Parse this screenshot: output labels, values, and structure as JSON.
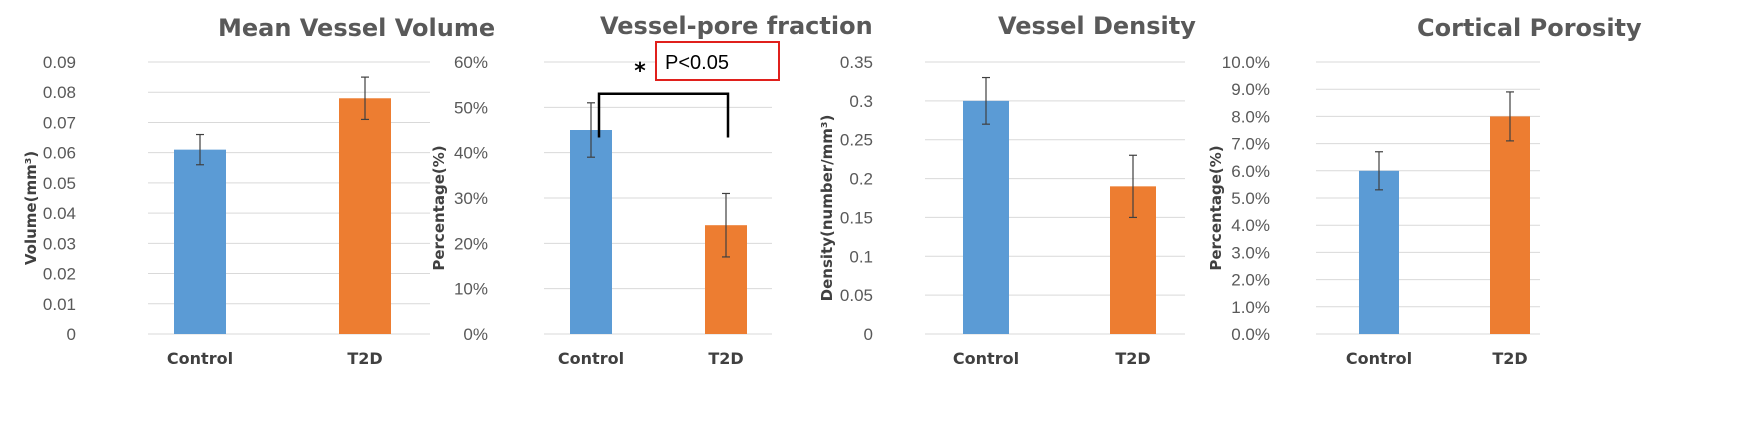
{
  "colors": {
    "control": "#5b9bd5",
    "t2d": "#ed7d31",
    "grid": "#d9d9d9",
    "text": "#595959",
    "annotation_box": "#e0201c"
  },
  "chart_data": [
    {
      "type": "bar",
      "title": "Mean Vessel Volume",
      "ylabel": "Volume(mm³)",
      "xlabel": "",
      "categories": [
        "Control",
        "T2D"
      ],
      "values": [
        0.061,
        0.078
      ],
      "errors": [
        0.005,
        0.007
      ],
      "ylim": [
        0,
        0.09
      ],
      "ytick_values": [
        0,
        0.01,
        0.02,
        0.03,
        0.04,
        0.05,
        0.06,
        0.07,
        0.08,
        0.09
      ],
      "ytick_labels": [
        "0",
        "0.01",
        "0.02",
        "0.03",
        "0.04",
        "0.05",
        "0.06",
        "0.07",
        "0.08",
        "0.09"
      ],
      "grid": true
    },
    {
      "type": "bar",
      "title": "Vessel-pore fraction",
      "ylabel": "Percentage(%)",
      "xlabel": "",
      "categories": [
        "Control",
        "T2D"
      ],
      "values": [
        0.45,
        0.24
      ],
      "errors": [
        0.06,
        0.07
      ],
      "ylim": [
        0,
        0.6
      ],
      "ytick_values": [
        0,
        0.1,
        0.2,
        0.3,
        0.4,
        0.5,
        0.6
      ],
      "ytick_labels": [
        "0%",
        "10%",
        "20%",
        "30%",
        "40%",
        "50%",
        "60%"
      ],
      "grid": true,
      "significance": {
        "marker": "*",
        "label": "P<0.05",
        "between": [
          "Control",
          "T2D"
        ],
        "level": 0.53,
        "drop": 0.46
      }
    },
    {
      "type": "bar",
      "title": "Vessel Density",
      "ylabel": "Density(number/mm³)",
      "xlabel": "",
      "categories": [
        "Control",
        "T2D"
      ],
      "values": [
        0.3,
        0.19
      ],
      "errors": [
        0.03,
        0.04
      ],
      "ylim": [
        0,
        0.35
      ],
      "ytick_values": [
        0,
        0.05,
        0.1,
        0.15,
        0.2,
        0.25,
        0.3,
        0.35
      ],
      "ytick_labels": [
        "0",
        "0.05",
        "0.1",
        "0.15",
        "0.2",
        "0.25",
        "0.3",
        "0.35"
      ],
      "grid": true
    },
    {
      "type": "bar",
      "title": "Cortical Porosity",
      "ylabel": "Percentage(%)",
      "xlabel": "",
      "categories": [
        "Control",
        "T2D"
      ],
      "values": [
        0.06,
        0.08
      ],
      "errors": [
        0.007,
        0.009
      ],
      "ylim": [
        0,
        0.1
      ],
      "ytick_values": [
        0,
        0.01,
        0.02,
        0.03,
        0.04,
        0.05,
        0.06,
        0.07,
        0.08,
        0.09,
        0.1
      ],
      "ytick_labels": [
        "0.0%",
        "1.0%",
        "2.0%",
        "3.0%",
        "4.0%",
        "5.0%",
        "6.0%",
        "7.0%",
        "8.0%",
        "9.0%",
        "10.0%"
      ],
      "grid": true
    }
  ]
}
